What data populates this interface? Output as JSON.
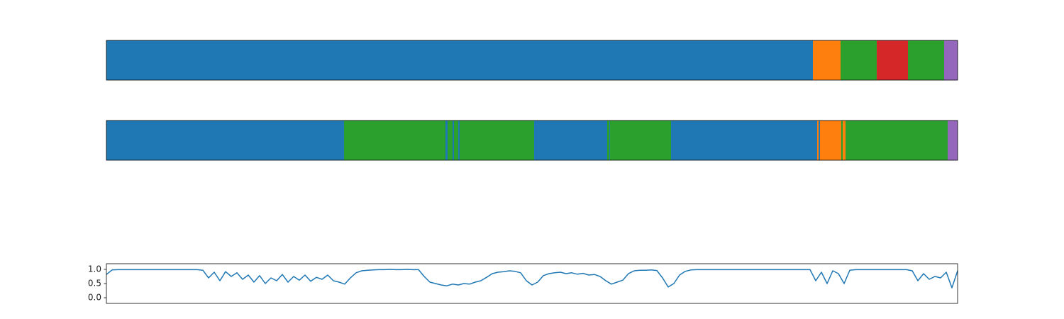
{
  "chart_data": [
    {
      "type": "segments",
      "xlim": [
        0,
        1200
      ],
      "segments": [
        {
          "start": 0,
          "end": 996,
          "color": "#1f77b4"
        },
        {
          "start": 996,
          "end": 1035,
          "color": "#ff7f0e"
        },
        {
          "start": 1035,
          "end": 1086,
          "color": "#2ca02c"
        },
        {
          "start": 1086,
          "end": 1130,
          "color": "#d62728"
        },
        {
          "start": 1130,
          "end": 1181,
          "color": "#2ca02c"
        },
        {
          "start": 1181,
          "end": 1200,
          "color": "#9467bd"
        }
      ]
    },
    {
      "type": "segments",
      "xlim": [
        0,
        1200
      ],
      "segments": [
        {
          "start": 0,
          "end": 335,
          "color": "#1f77b4"
        },
        {
          "start": 335,
          "end": 478,
          "color": "#2ca02c"
        },
        {
          "start": 478,
          "end": 481,
          "color": "#1f77b4"
        },
        {
          "start": 481,
          "end": 488,
          "color": "#2ca02c"
        },
        {
          "start": 488,
          "end": 490,
          "color": "#1f77b4"
        },
        {
          "start": 490,
          "end": 496,
          "color": "#2ca02c"
        },
        {
          "start": 496,
          "end": 498,
          "color": "#1f77b4"
        },
        {
          "start": 498,
          "end": 603,
          "color": "#2ca02c"
        },
        {
          "start": 603,
          "end": 706,
          "color": "#1f77b4"
        },
        {
          "start": 706,
          "end": 709,
          "color": "#2ca02c"
        },
        {
          "start": 709,
          "end": 710,
          "color": "#1f77b4"
        },
        {
          "start": 710,
          "end": 796,
          "color": "#2ca02c"
        },
        {
          "start": 796,
          "end": 1002,
          "color": "#1f77b4"
        },
        {
          "start": 1002,
          "end": 1004,
          "color": "#ff7f0e"
        },
        {
          "start": 1004,
          "end": 1006,
          "color": "#1f77b4"
        },
        {
          "start": 1006,
          "end": 1036,
          "color": "#ff7f0e"
        },
        {
          "start": 1036,
          "end": 1038,
          "color": "#2ca02c"
        },
        {
          "start": 1038,
          "end": 1042,
          "color": "#ff7f0e"
        },
        {
          "start": 1042,
          "end": 1186,
          "color": "#2ca02c"
        },
        {
          "start": 1186,
          "end": 1200,
          "color": "#9467bd"
        }
      ]
    },
    {
      "type": "line",
      "color": "#1f77b4",
      "xlim": [
        0,
        1200
      ],
      "ylim": [
        -0.2,
        1.2
      ],
      "yticks": [
        {
          "value": 0,
          "label": "0.0"
        },
        0.5,
        {
          "value": 1,
          "label": "1.0"
        }
      ],
      "x": [
        0,
        8,
        16,
        24,
        32,
        40,
        48,
        56,
        64,
        72,
        80,
        88,
        96,
        104,
        112,
        120,
        128,
        136,
        144,
        152,
        160,
        168,
        176,
        184,
        192,
        200,
        208,
        216,
        224,
        232,
        240,
        248,
        256,
        264,
        272,
        280,
        288,
        296,
        304,
        312,
        320,
        328,
        336,
        344,
        352,
        360,
        368,
        376,
        384,
        392,
        400,
        408,
        416,
        424,
        432,
        440,
        448,
        456,
        464,
        472,
        480,
        488,
        496,
        504,
        512,
        520,
        528,
        536,
        544,
        552,
        560,
        568,
        576,
        584,
        592,
        600,
        608,
        616,
        624,
        632,
        640,
        648,
        656,
        664,
        672,
        680,
        688,
        696,
        704,
        712,
        720,
        728,
        736,
        744,
        752,
        760,
        768,
        776,
        784,
        792,
        800,
        808,
        816,
        824,
        832,
        840,
        848,
        856,
        864,
        872,
        880,
        888,
        896,
        904,
        912,
        920,
        928,
        936,
        944,
        952,
        960,
        968,
        976,
        984,
        992,
        1000,
        1008,
        1016,
        1024,
        1032,
        1040,
        1048,
        1056,
        1064,
        1072,
        1080,
        1088,
        1096,
        1104,
        1112,
        1120,
        1128,
        1136,
        1144,
        1152,
        1160,
        1168,
        1176,
        1184,
        1192,
        1200
      ],
      "values": [
        0.82,
        0.98,
        0.99,
        0.99,
        0.99,
        0.99,
        0.99,
        0.99,
        0.99,
        0.99,
        0.99,
        0.99,
        0.99,
        0.99,
        0.99,
        0.99,
        0.99,
        0.97,
        0.7,
        0.9,
        0.6,
        0.92,
        0.75,
        0.88,
        0.65,
        0.8,
        0.55,
        0.78,
        0.5,
        0.7,
        0.6,
        0.82,
        0.55,
        0.75,
        0.62,
        0.8,
        0.58,
        0.72,
        0.65,
        0.8,
        0.6,
        0.55,
        0.48,
        0.7,
        0.88,
        0.95,
        0.97,
        0.98,
        0.99,
        0.99,
        1.0,
        0.99,
        0.99,
        1.0,
        0.99,
        0.99,
        0.75,
        0.55,
        0.5,
        0.45,
        0.42,
        0.48,
        0.45,
        0.5,
        0.48,
        0.55,
        0.6,
        0.72,
        0.85,
        0.9,
        0.92,
        0.95,
        0.93,
        0.88,
        0.6,
        0.45,
        0.55,
        0.78,
        0.85,
        0.88,
        0.9,
        0.85,
        0.88,
        0.83,
        0.86,
        0.8,
        0.82,
        0.75,
        0.6,
        0.48,
        0.55,
        0.62,
        0.85,
        0.95,
        0.97,
        0.97,
        0.98,
        0.96,
        0.7,
        0.38,
        0.5,
        0.8,
        0.93,
        0.98,
        0.99,
        0.99,
        0.99,
        0.99,
        0.99,
        0.99,
        0.99,
        0.99,
        0.99,
        0.99,
        0.99,
        0.99,
        0.99,
        0.99,
        0.99,
        0.99,
        0.99,
        0.99,
        0.99,
        0.99,
        0.99,
        0.6,
        0.9,
        0.5,
        0.95,
        0.85,
        0.5,
        0.97,
        0.99,
        0.99,
        0.99,
        0.99,
        0.99,
        0.99,
        0.99,
        0.99,
        0.99,
        0.99,
        0.95,
        0.6,
        0.85,
        0.65,
        0.75,
        0.7,
        0.9,
        0.35,
        0.95
      ]
    }
  ]
}
